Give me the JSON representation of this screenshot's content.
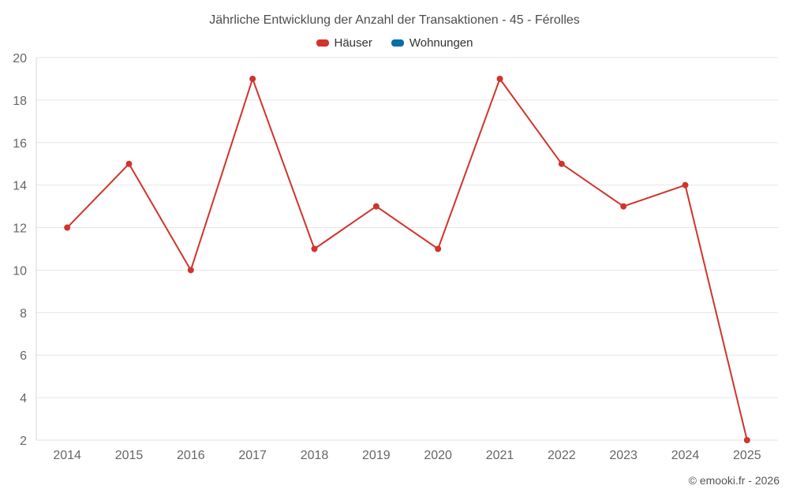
{
  "title": "Jährliche Entwicklung der Anzahl der Transaktionen - 45 - Férolles",
  "legend": [
    {
      "label": "Häuser",
      "color": "#d0342c"
    },
    {
      "label": "Wohnungen",
      "color": "#0c6da8"
    }
  ],
  "footer": "© emooki.fr - 2026",
  "colors": {
    "grid": "#e6e6e6",
    "axis": "#d8d8d8",
    "tick_label": "#666666"
  },
  "chart_data": {
    "type": "line",
    "x": [
      "2014",
      "2015",
      "2016",
      "2017",
      "2018",
      "2019",
      "2020",
      "2021",
      "2022",
      "2023",
      "2024",
      "2025"
    ],
    "series": [
      {
        "name": "Häuser",
        "color": "#d0342c",
        "values": [
          12,
          15,
          10,
          19,
          11,
          13,
          11,
          19,
          15,
          13,
          14,
          2
        ]
      },
      {
        "name": "Wohnungen",
        "color": "#0c6da8",
        "values": []
      }
    ],
    "title": "Jährliche Entwicklung der Anzahl der Transaktionen - 45 - Férolles",
    "xlabel": "",
    "ylabel": "",
    "ylim": [
      2,
      20
    ],
    "yticks": [
      2,
      4,
      6,
      8,
      10,
      12,
      14,
      16,
      18,
      20
    ],
    "grid": true,
    "legend_position": "top"
  }
}
